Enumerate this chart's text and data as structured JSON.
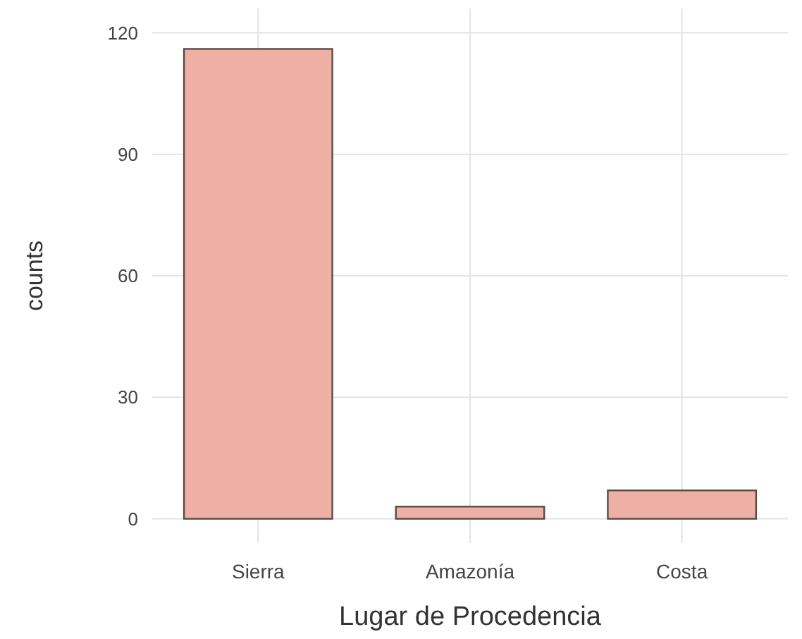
{
  "chart_data": {
    "type": "bar",
    "xlabel": "Lugar de Procedencia",
    "ylabel": "counts",
    "categories": [
      "Sierra",
      "Amazonía",
      "Costa"
    ],
    "values": [
      116,
      3,
      7
    ],
    "color": "#eeb0a4",
    "ylim": [
      -6,
      126
    ],
    "yticks": [
      0,
      30,
      60,
      90,
      120
    ],
    "grid": true
  }
}
